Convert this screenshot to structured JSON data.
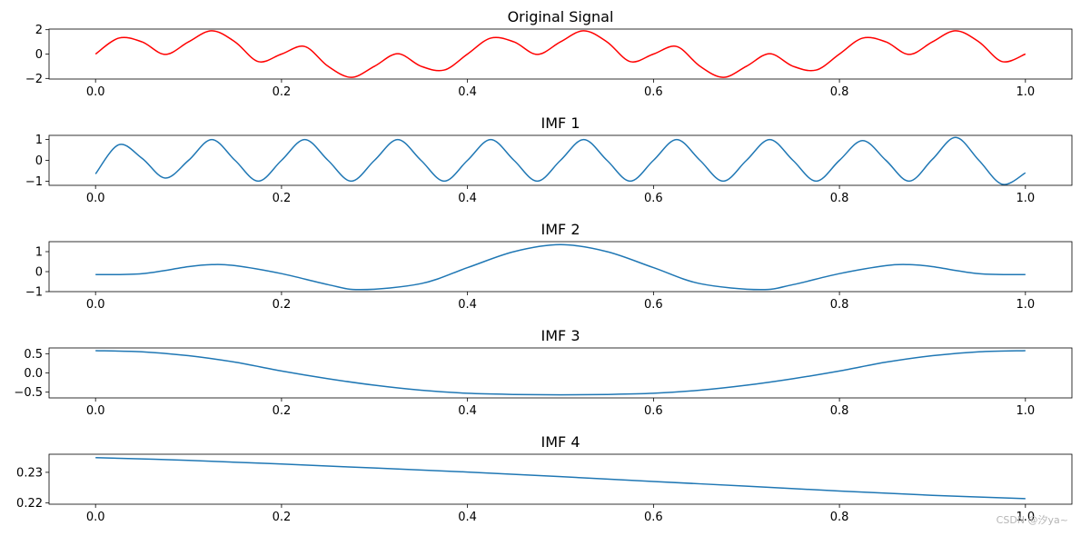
{
  "chart_data": [
    {
      "type": "line",
      "title": "Original Signal",
      "xlim": [
        -0.05,
        1.05
      ],
      "ylim": [
        -2.05,
        2.05
      ],
      "xticks": [
        0.0,
        0.2,
        0.4,
        0.6,
        0.8,
        1.0
      ],
      "xtick_labels": [
        "0.0",
        "0.2",
        "0.4",
        "0.6",
        "0.8",
        "1.0"
      ],
      "yticks": [
        -2,
        0,
        2
      ],
      "ytick_labels": [
        "−2",
        "0",
        "2"
      ],
      "color": "#ff0000",
      "x": [
        0.0,
        0.025,
        0.05,
        0.075,
        0.1,
        0.125,
        0.15,
        0.175,
        0.2,
        0.225,
        0.25,
        0.275,
        0.3,
        0.325,
        0.35,
        0.375,
        0.4,
        0.425,
        0.45,
        0.475,
        0.5,
        0.525,
        0.55,
        0.575,
        0.6,
        0.625,
        0.65,
        0.675,
        0.7,
        0.725,
        0.75,
        0.775,
        0.8,
        0.825,
        0.85,
        0.875,
        0.9,
        0.925,
        0.95,
        0.975,
        1.0
      ],
      "y": [
        0.0,
        1.31,
        1.0,
        -0.03,
        1.0,
        1.91,
        1.0,
        -0.62,
        -0.0,
        0.62,
        -1.0,
        -1.91,
        -1.0,
        0.03,
        -1.0,
        -1.31,
        0.0,
        1.31,
        1.0,
        -0.03,
        1.0,
        1.91,
        1.0,
        -0.62,
        0.0,
        0.62,
        -1.0,
        -1.91,
        -1.0,
        0.03,
        -1.0,
        -1.31,
        0.0,
        1.31,
        1.0,
        -0.03,
        1.0,
        1.91,
        1.0,
        -0.62,
        0.0
      ]
    },
    {
      "type": "line",
      "title": "IMF 1",
      "xlim": [
        -0.05,
        1.05
      ],
      "ylim": [
        -1.2,
        1.2
      ],
      "xticks": [
        0.0,
        0.2,
        0.4,
        0.6,
        0.8,
        1.0
      ],
      "xtick_labels": [
        "0.0",
        "0.2",
        "0.4",
        "0.6",
        "0.8",
        "1.0"
      ],
      "yticks": [
        -1,
        0,
        1
      ],
      "ytick_labels": [
        "−1",
        "0",
        "1"
      ],
      "color": "#1f77b4",
      "x": [
        0.0,
        0.025,
        0.05,
        0.075,
        0.1,
        0.125,
        0.15,
        0.175,
        0.2,
        0.225,
        0.25,
        0.275,
        0.3,
        0.325,
        0.35,
        0.375,
        0.4,
        0.425,
        0.45,
        0.475,
        0.5,
        0.525,
        0.55,
        0.575,
        0.6,
        0.625,
        0.65,
        0.675,
        0.7,
        0.725,
        0.75,
        0.775,
        0.8,
        0.825,
        0.85,
        0.875,
        0.9,
        0.925,
        0.95,
        0.975,
        1.0
      ],
      "y": [
        -0.65,
        0.75,
        0.1,
        -0.85,
        0.0,
        1.0,
        0.0,
        -1.0,
        0.0,
        1.0,
        0.0,
        -1.0,
        0.0,
        1.0,
        0.0,
        -1.0,
        0.0,
        1.0,
        0.0,
        -1.0,
        0.0,
        1.0,
        0.0,
        -1.0,
        0.0,
        1.0,
        0.0,
        -1.0,
        0.0,
        1.0,
        0.0,
        -1.0,
        0.0,
        0.95,
        0.0,
        -1.0,
        0.05,
        1.1,
        0.0,
        -1.15,
        -0.6
      ]
    },
    {
      "type": "line",
      "title": "IMF 2",
      "xlim": [
        -0.05,
        1.05
      ],
      "ylim": [
        -1.0,
        1.5
      ],
      "xticks": [
        0.0,
        0.2,
        0.4,
        0.6,
        0.8,
        1.0
      ],
      "xtick_labels": [
        "0.0",
        "0.2",
        "0.4",
        "0.6",
        "0.8",
        "1.0"
      ],
      "yticks": [
        -1,
        0,
        1
      ],
      "ytick_labels": [
        "−1",
        "0",
        "1"
      ],
      "color": "#1f77b4",
      "x": [
        0.0,
        0.05,
        0.1,
        0.125,
        0.15,
        0.2,
        0.25,
        0.285,
        0.35,
        0.4,
        0.45,
        0.5,
        0.55,
        0.6,
        0.65,
        0.715,
        0.75,
        0.8,
        0.85,
        0.875,
        0.9,
        0.95,
        1.0
      ],
      "y": [
        -0.15,
        -0.1,
        0.25,
        0.35,
        0.3,
        -0.1,
        -0.65,
        -0.9,
        -0.6,
        0.2,
        1.0,
        1.35,
        1.0,
        0.2,
        -0.6,
        -0.9,
        -0.65,
        -0.1,
        0.3,
        0.35,
        0.25,
        -0.1,
        -0.15
      ]
    },
    {
      "type": "line",
      "title": "IMF 3",
      "xlim": [
        -0.05,
        1.05
      ],
      "ylim": [
        -0.65,
        0.65
      ],
      "xticks": [
        0.0,
        0.2,
        0.4,
        0.6,
        0.8,
        1.0
      ],
      "xtick_labels": [
        "0.0",
        "0.2",
        "0.4",
        "0.6",
        "0.8",
        "1.0"
      ],
      "yticks": [
        -0.5,
        0.0,
        0.5
      ],
      "ytick_labels": [
        "−0.5",
        "0.0",
        "0.5"
      ],
      "color": "#1f77b4",
      "x": [
        0.0,
        0.05,
        0.1,
        0.15,
        0.2,
        0.25,
        0.3,
        0.35,
        0.4,
        0.45,
        0.5,
        0.55,
        0.6,
        0.65,
        0.7,
        0.75,
        0.8,
        0.85,
        0.9,
        0.95,
        1.0
      ],
      "y": [
        0.58,
        0.55,
        0.45,
        0.28,
        0.05,
        -0.15,
        -0.32,
        -0.45,
        -0.53,
        -0.56,
        -0.57,
        -0.56,
        -0.53,
        -0.45,
        -0.32,
        -0.15,
        0.05,
        0.28,
        0.45,
        0.55,
        0.58
      ]
    },
    {
      "type": "line",
      "title": "IMF 4",
      "xlim": [
        -0.05,
        1.05
      ],
      "ylim": [
        0.2196,
        0.2359
      ],
      "xticks": [
        0.0,
        0.2,
        0.4,
        0.6,
        0.8,
        1.0
      ],
      "xtick_labels": [
        "0.0",
        "0.2",
        "0.4",
        "0.6",
        "0.8",
        "1.0"
      ],
      "yticks": [
        0.22,
        0.23
      ],
      "ytick_labels": [
        "0.22",
        "0.23"
      ],
      "color": "#1f77b4",
      "x": [
        0.0,
        0.1,
        0.2,
        0.3,
        0.4,
        0.5,
        0.6,
        0.7,
        0.8,
        0.9,
        1.0
      ],
      "y": [
        0.2348,
        0.2339,
        0.2327,
        0.2314,
        0.2301,
        0.2286,
        0.227,
        0.2255,
        0.2239,
        0.2225,
        0.2214
      ]
    }
  ],
  "watermark": "CSDN @汐ya~"
}
